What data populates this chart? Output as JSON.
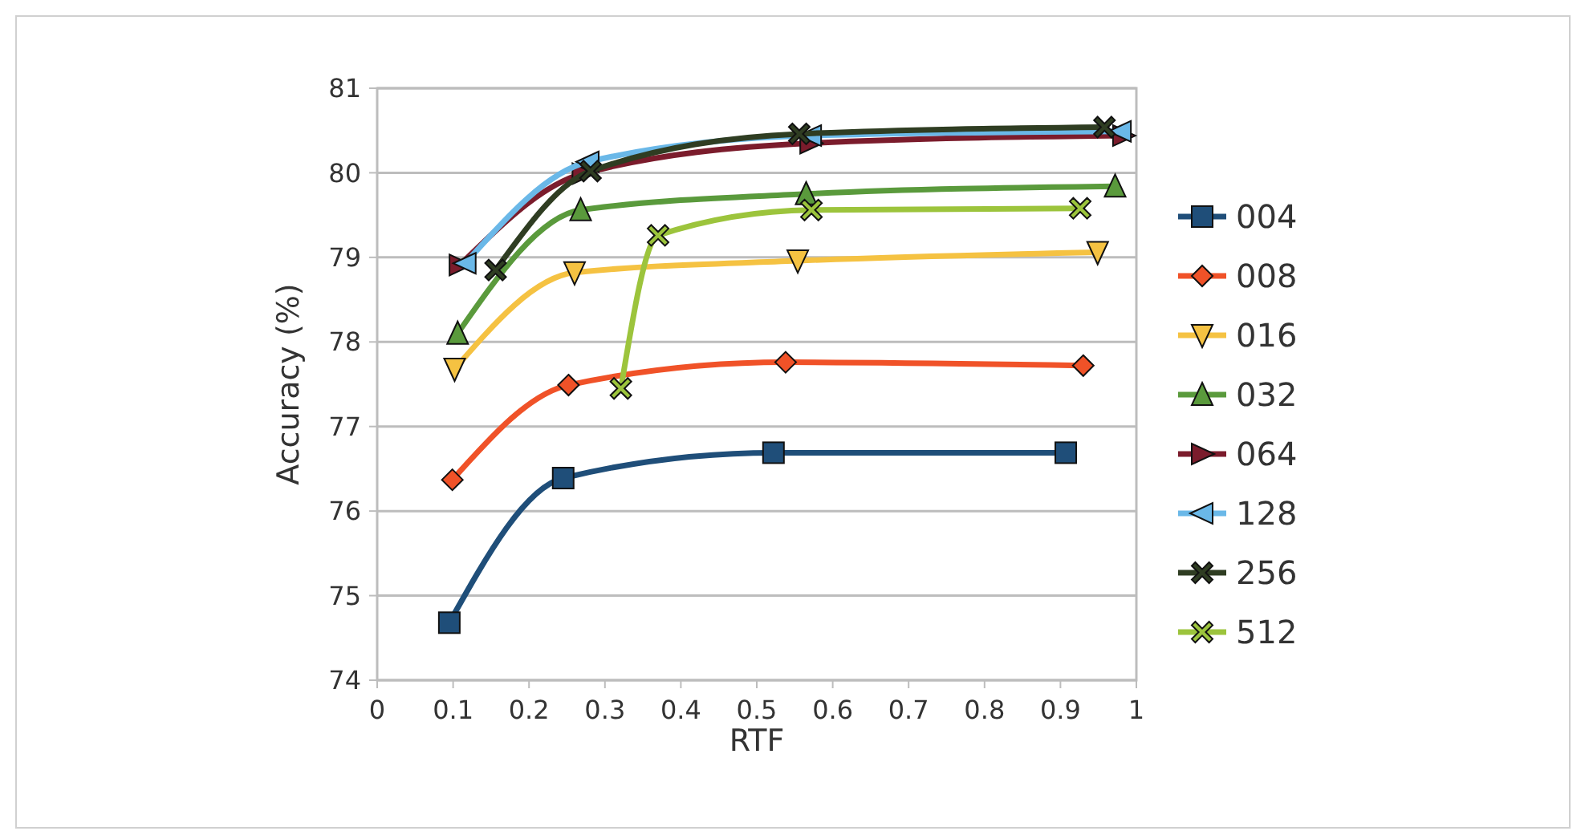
{
  "chart_data": {
    "type": "line",
    "xlabel": "RTF",
    "ylabel": "Accuracy (%)",
    "xlim": [
      0,
      1
    ],
    "xticks": [
      0,
      0.1,
      0.2,
      0.3,
      0.4,
      0.5,
      0.6,
      0.7,
      0.8,
      0.9,
      1
    ],
    "ylim": [
      74,
      81
    ],
    "yticks": [
      74,
      75,
      76,
      77,
      78,
      79,
      80,
      81
    ],
    "grid": "y",
    "legend": "right",
    "line_style": "solid",
    "series": [
      {
        "name": "004",
        "color": "#1f4e79",
        "marker": "square",
        "x": [
          0.095,
          0.245,
          0.522,
          0.907
        ],
        "values": [
          74.68,
          76.39,
          76.69,
          76.69
        ]
      },
      {
        "name": "008",
        "color": "#f05228",
        "marker": "diamond",
        "x": [
          0.099,
          0.252,
          0.538,
          0.93
        ],
        "values": [
          76.37,
          77.49,
          77.76,
          77.72
        ]
      },
      {
        "name": "016",
        "color": "#f5c242",
        "marker": "triangle-down",
        "x": [
          0.102,
          0.26,
          0.554,
          0.949
        ],
        "values": [
          77.68,
          78.82,
          78.96,
          79.06
        ]
      },
      {
        "name": "032",
        "color": "#5a9a3c",
        "marker": "triangle",
        "x": [
          0.106,
          0.268,
          0.565,
          0.972
        ],
        "values": [
          78.1,
          79.56,
          79.75,
          79.84
        ]
      },
      {
        "name": "064",
        "color": "#7b1c2c",
        "marker": "triangle-right",
        "x": [
          0.109,
          0.271,
          0.571,
          0.983
        ],
        "values": [
          78.91,
          79.99,
          80.35,
          80.44
        ]
      },
      {
        "name": "128",
        "color": "#6ab8e8",
        "marker": "triangle-left",
        "x": [
          0.116,
          0.278,
          0.571,
          0.979
        ],
        "values": [
          78.93,
          80.13,
          80.44,
          80.49
        ]
      },
      {
        "name": "256",
        "color": "#2f3d22",
        "marker": "cross",
        "x": [
          0.156,
          0.281,
          0.556,
          0.958
        ],
        "values": [
          78.85,
          80.02,
          80.46,
          80.54
        ]
      },
      {
        "name": "512",
        "color": "#9cc43c",
        "marker": "cross",
        "x": [
          0.321,
          0.37,
          0.572,
          0.926
        ],
        "values": [
          77.45,
          79.26,
          79.56,
          79.58
        ]
      }
    ]
  }
}
